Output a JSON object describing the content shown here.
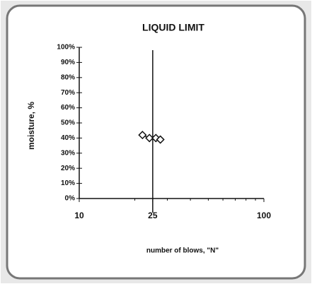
{
  "chart_data": {
    "type": "line",
    "title": "LIQUID LIMIT",
    "xlabel": "number of blows, \"N\"",
    "ylabel": "moisture, %",
    "log_x": true,
    "xlim": [
      10,
      100
    ],
    "xticks": [
      10,
      25,
      100
    ],
    "ylim": [
      0,
      100
    ],
    "yticks": [
      {
        "value": 0,
        "label": "0%"
      },
      {
        "value": 10,
        "label": "10%"
      },
      {
        "value": 20,
        "label": "20%"
      },
      {
        "value": 30,
        "label": "30%"
      },
      {
        "value": 40,
        "label": "40%"
      },
      {
        "value": 50,
        "label": "50%"
      },
      {
        "value": 60,
        "label": "60%"
      },
      {
        "value": 70,
        "label": "70%"
      },
      {
        "value": 80,
        "label": "80%"
      },
      {
        "value": 90,
        "label": "90%"
      },
      {
        "value": 100,
        "label": "100%"
      }
    ],
    "vline": 25,
    "x": [
      22,
      24,
      26,
      27.5
    ],
    "series": [
      {
        "color": "#111111",
        "values": [
          42,
          40,
          40,
          39
        ]
      }
    ]
  }
}
